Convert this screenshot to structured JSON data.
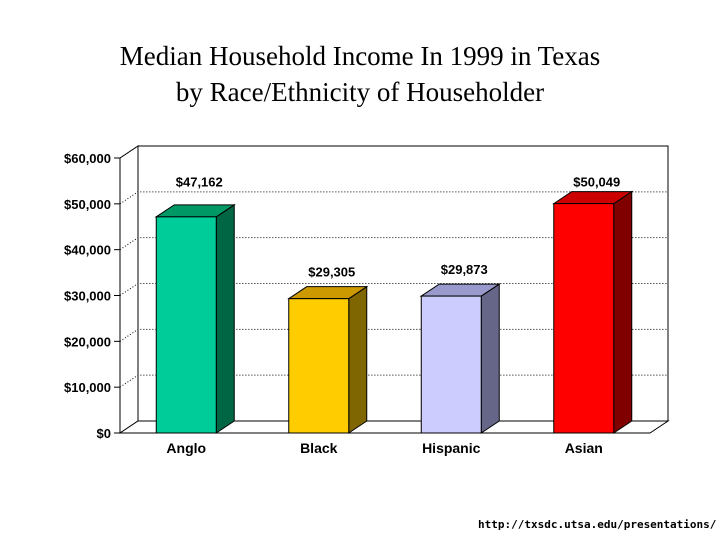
{
  "chart_data": {
    "type": "bar",
    "title_lines": [
      "Median Household Income In 1999 in Texas",
      "by Race/Ethnicity of Householder"
    ],
    "categories": [
      "Anglo",
      "Black",
      "Hispanic",
      "Asian"
    ],
    "values": [
      47162,
      29305,
      29873,
      50049
    ],
    "value_labels": [
      "$47,162",
      "$29,305",
      "$29,873",
      "$50,049"
    ],
    "yticks": [
      0,
      10000,
      20000,
      30000,
      40000,
      50000,
      60000
    ],
    "ytick_labels": [
      "$0",
      "$10,000",
      "$20,000",
      "$30,000",
      "$40,000",
      "$50,000",
      "$60,000"
    ],
    "ylim": [
      0,
      60000
    ],
    "grid": true,
    "bar_colors": [
      {
        "front": "#00cc99",
        "side": "#006644",
        "top": "#009966"
      },
      {
        "front": "#ffcc00",
        "side": "#806600",
        "top": "#cc9900"
      },
      {
        "front": "#ccccff",
        "side": "#666688",
        "top": "#9999cc"
      },
      {
        "front": "#ff0000",
        "side": "#800000",
        "top": "#cc0000"
      }
    ]
  },
  "footer": {
    "url_text": "http://txsdc.utsa.edu/presentations/"
  }
}
